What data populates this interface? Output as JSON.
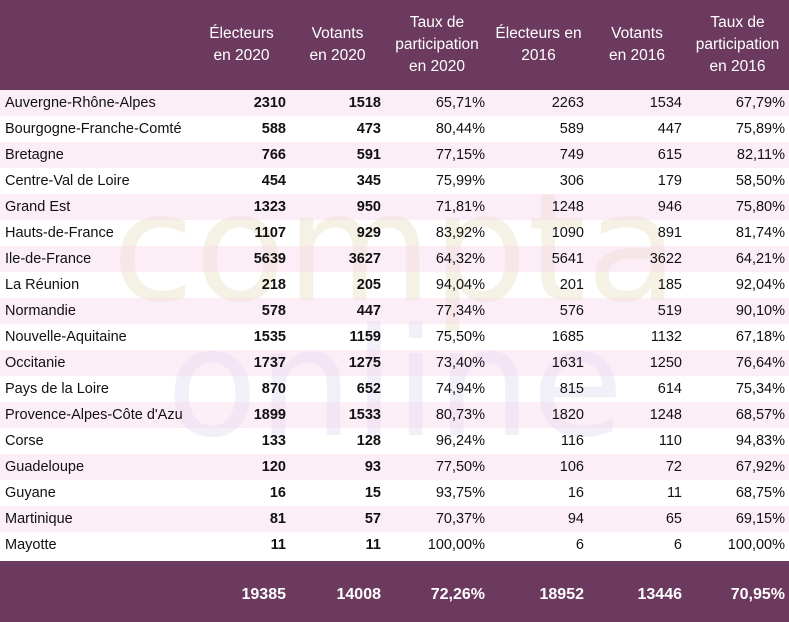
{
  "header": {
    "col0": "",
    "col1": [
      "Électeurs",
      "en 2020"
    ],
    "col2": [
      "Votants",
      "en 2020"
    ],
    "col3": [
      "Taux de",
      "participation",
      "en 2020"
    ],
    "col4": [
      "Électeurs en",
      "2016"
    ],
    "col5": [
      "Votants",
      "en 2016"
    ],
    "col6": [
      "Taux de",
      "participation",
      "en 2016"
    ]
  },
  "rows": [
    {
      "region": "Auvergne-Rhône-Alpes",
      "e2020": "2310",
      "v2020": "1518",
      "t2020": "65,71%",
      "e2016": "2263",
      "v2016": "1534",
      "t2016": "67,79%"
    },
    {
      "region": "Bourgogne-Franche-Comté",
      "e2020": "588",
      "v2020": "473",
      "t2020": "80,44%",
      "e2016": "589",
      "v2016": "447",
      "t2016": "75,89%"
    },
    {
      "region": "Bretagne",
      "e2020": "766",
      "v2020": "591",
      "t2020": "77,15%",
      "e2016": "749",
      "v2016": "615",
      "t2016": "82,11%"
    },
    {
      "region": "Centre-Val de Loire",
      "e2020": "454",
      "v2020": "345",
      "t2020": "75,99%",
      "e2016": "306",
      "v2016": "179",
      "t2016": "58,50%"
    },
    {
      "region": "Grand Est",
      "e2020": "1323",
      "v2020": "950",
      "t2020": "71,81%",
      "e2016": "1248",
      "v2016": "946",
      "t2016": "75,80%"
    },
    {
      "region": "Hauts-de-France",
      "e2020": "1107",
      "v2020": "929",
      "t2020": "83,92%",
      "e2016": "1090",
      "v2016": "891",
      "t2016": "81,74%"
    },
    {
      "region": "Ile-de-France",
      "e2020": "5639",
      "v2020": "3627",
      "t2020": "64,32%",
      "e2016": "5641",
      "v2016": "3622",
      "t2016": "64,21%"
    },
    {
      "region": "La Réunion",
      "e2020": "218",
      "v2020": "205",
      "t2020": "94,04%",
      "e2016": "201",
      "v2016": "185",
      "t2016": "92,04%"
    },
    {
      "region": "Normandie",
      "e2020": "578",
      "v2020": "447",
      "t2020": "77,34%",
      "e2016": "576",
      "v2016": "519",
      "t2016": "90,10%"
    },
    {
      "region": "Nouvelle-Aquitaine",
      "e2020": "1535",
      "v2020": "1159",
      "t2020": "75,50%",
      "e2016": "1685",
      "v2016": "1132",
      "t2016": "67,18%"
    },
    {
      "region": "Occitanie",
      "e2020": "1737",
      "v2020": "1275",
      "t2020": "73,40%",
      "e2016": "1631",
      "v2016": "1250",
      "t2016": "76,64%"
    },
    {
      "region": "Pays de la Loire",
      "e2020": "870",
      "v2020": "652",
      "t2020": "74,94%",
      "e2016": "815",
      "v2016": "614",
      "t2016": "75,34%"
    },
    {
      "region": "Provence-Alpes-Côte d'Azu",
      "e2020": "1899",
      "v2020": "1533",
      "t2020": "80,73%",
      "e2016": "1820",
      "v2016": "1248",
      "t2016": "68,57%"
    },
    {
      "region": "Corse",
      "e2020": "133",
      "v2020": "128",
      "t2020": "96,24%",
      "e2016": "116",
      "v2016": "110",
      "t2016": "94,83%"
    },
    {
      "region": "Guadeloupe",
      "e2020": "120",
      "v2020": "93",
      "t2020": "77,50%",
      "e2016": "106",
      "v2016": "72",
      "t2016": "67,92%"
    },
    {
      "region": "Guyane",
      "e2020": "16",
      "v2020": "15",
      "t2020": "93,75%",
      "e2016": "16",
      "v2016": "11",
      "t2016": "68,75%"
    },
    {
      "region": "Martinique",
      "e2020": "81",
      "v2020": "57",
      "t2020": "70,37%",
      "e2016": "94",
      "v2016": "65",
      "t2016": "69,15%"
    },
    {
      "region": "Mayotte",
      "e2020": "11",
      "v2020": "11",
      "t2020": "100,00%",
      "e2016": "6",
      "v2016": "6",
      "t2016": "100,00%"
    }
  ],
  "totals": {
    "region": "",
    "e2020": "19385",
    "v2020": "14008",
    "t2020": "72,26%",
    "e2016": "18952",
    "v2016": "13446",
    "t2016": "70,95%"
  },
  "watermark": {
    "line1": "compta",
    "line2": "online"
  },
  "colors": {
    "header_bg": "#6b3a5e",
    "row_tint": "#f7e0f0",
    "watermark_1": "#efe8d2",
    "watermark_2": "#e9e4f5"
  }
}
